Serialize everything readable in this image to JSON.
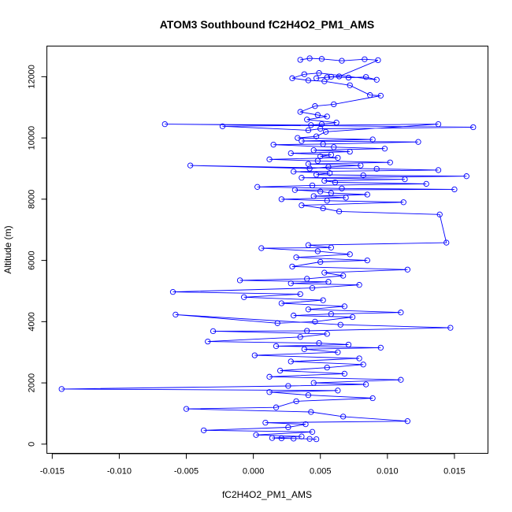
{
  "chart_data": {
    "type": "scatter",
    "title": "ATOM3 Southbound fC2H4O2_PM1_AMS",
    "xlabel": "fC2H4O2_PM1_AMS",
    "ylabel": "Altitude (m)",
    "xlim": [
      -0.0154,
      0.0175
    ],
    "ylim": [
      -300,
      13000
    ],
    "xticks": [
      -0.015,
      -0.01,
      -0.005,
      0.0,
      0.005,
      0.01,
      0.015
    ],
    "xtick_labels": [
      "-0.015",
      "-0.010",
      "-0.005",
      "0.000",
      "0.005",
      "0.010",
      "0.015"
    ],
    "yticks": [
      0,
      2000,
      4000,
      6000,
      8000,
      10000,
      12000
    ],
    "ytick_labels": [
      "0",
      "2000",
      "4000",
      "6000",
      "8000",
      "10000",
      "12000"
    ],
    "grid": false,
    "color": "#0000ff",
    "marker": "open-circle",
    "connect_points": true,
    "series": [
      {
        "x": [
          0.0035,
          0.0042,
          0.0051,
          0.0066,
          0.0083,
          0.0093,
          0.0064,
          0.0055,
          0.0047,
          0.0058,
          0.0071,
          0.0084,
          0.0092,
          0.0049,
          0.0038,
          0.0029,
          0.0041,
          0.0053,
          0.0072,
          0.0087,
          0.0095,
          0.006,
          0.0046,
          0.0035,
          0.0048,
          0.0055,
          0.004,
          0.0062,
          0.0051,
          0.0043,
          -0.0066,
          0.0164,
          0.005,
          0.0041,
          -0.0023,
          0.0138,
          0.0054,
          0.0047,
          0.0033,
          0.0089,
          0.0036,
          0.0123,
          0.0052,
          0.0015,
          0.006,
          0.0098,
          0.0045,
          0.0072,
          0.0028,
          0.0058,
          0.005,
          0.0063,
          0.0012,
          0.0048,
          0.0102,
          0.0041,
          0.008,
          0.0056,
          0.0042,
          -0.0047,
          0.0092,
          0.0138,
          0.003,
          0.0057,
          0.0047,
          0.0082,
          0.0159,
          0.0036,
          0.0113,
          0.0053,
          0.0061,
          0.0129,
          0.0044,
          0.0003,
          0.0066,
          0.015,
          0.0031,
          0.005,
          0.0058,
          0.0085,
          0.0045,
          0.0069,
          0.0021,
          0.0055,
          0.0112,
          0.0036,
          0.0052,
          0.0064,
          0.0139,
          0.0144,
          0.0041,
          0.0058,
          0.0006,
          0.0048,
          0.0072,
          0.0032,
          0.0085,
          0.005,
          0.0029,
          0.0115,
          0.0053,
          0.0067,
          0.004,
          -0.001,
          0.0056,
          0.0028,
          0.0079,
          0.0044,
          -0.006,
          0.0035,
          -0.0007,
          0.0052,
          0.0021,
          0.0068,
          0.0041,
          0.011,
          0.0058,
          0.003,
          0.0074,
          0.0046,
          0.0018,
          -0.0058,
          0.0065,
          0.0147,
          0.004,
          -0.003,
          0.0055,
          0.0035,
          -0.0034,
          0.0049,
          0.0071,
          0.0017,
          0.0095,
          0.0038,
          0.0063,
          0.0001,
          0.0079,
          0.0028,
          0.0082,
          0.0055,
          0.002,
          0.0068,
          0.0012,
          0.011,
          0.0045,
          0.0084,
          0.0026,
          -0.0143,
          0.0063,
          0.0012,
          0.0041,
          0.0089,
          0.0032,
          0.0017,
          -0.005,
          0.0043,
          0.0067,
          0.0115,
          0.0009,
          0.0039,
          0.0026,
          -0.0037,
          0.0044,
          0.0002,
          0.0036,
          0.0014,
          0.0021,
          0.003,
          0.0042,
          0.0047
        ],
        "y": [
          12550,
          12600,
          12580,
          12520,
          12570,
          12540,
          12010,
          11980,
          11950,
          12000,
          11970,
          11990,
          11900,
          12120,
          12080,
          11950,
          11880,
          11850,
          11720,
          11400,
          11380,
          11100,
          11040,
          10850,
          10750,
          10700,
          10600,
          10500,
          10450,
          10420,
          10450,
          10350,
          10300,
          10250,
          10380,
          10450,
          10200,
          10050,
          10000,
          9950,
          9900,
          9870,
          9800,
          9780,
          9700,
          9650,
          9600,
          9550,
          9500,
          9450,
          9400,
          9350,
          9300,
          9250,
          9200,
          9150,
          9100,
          9050,
          9000,
          9100,
          8990,
          8950,
          8900,
          8850,
          8800,
          8780,
          8750,
          8700,
          8650,
          8600,
          8550,
          8500,
          8450,
          8400,
          8350,
          8320,
          8300,
          8250,
          8200,
          8150,
          8100,
          8050,
          8000,
          7950,
          7900,
          7800,
          7700,
          7600,
          7500,
          6580,
          6500,
          6420,
          6400,
          6300,
          6200,
          6100,
          6000,
          5950,
          5800,
          5700,
          5600,
          5500,
          5400,
          5350,
          5300,
          5250,
          5200,
          5100,
          4970,
          4900,
          4800,
          4700,
          4600,
          4500,
          4400,
          4300,
          4250,
          4200,
          4150,
          4000,
          3950,
          4230,
          3900,
          3800,
          3700,
          3690,
          3600,
          3500,
          3350,
          3300,
          3250,
          3200,
          3150,
          3100,
          3000,
          2900,
          2800,
          2700,
          2600,
          2500,
          2400,
          2300,
          2200,
          2100,
          2000,
          1950,
          1900,
          1800,
          1750,
          1700,
          1600,
          1500,
          1400,
          1200,
          1150,
          1050,
          900,
          750,
          700,
          650,
          550,
          450,
          400,
          300,
          250,
          200,
          190,
          180,
          170,
          160
        ]
      }
    ]
  }
}
